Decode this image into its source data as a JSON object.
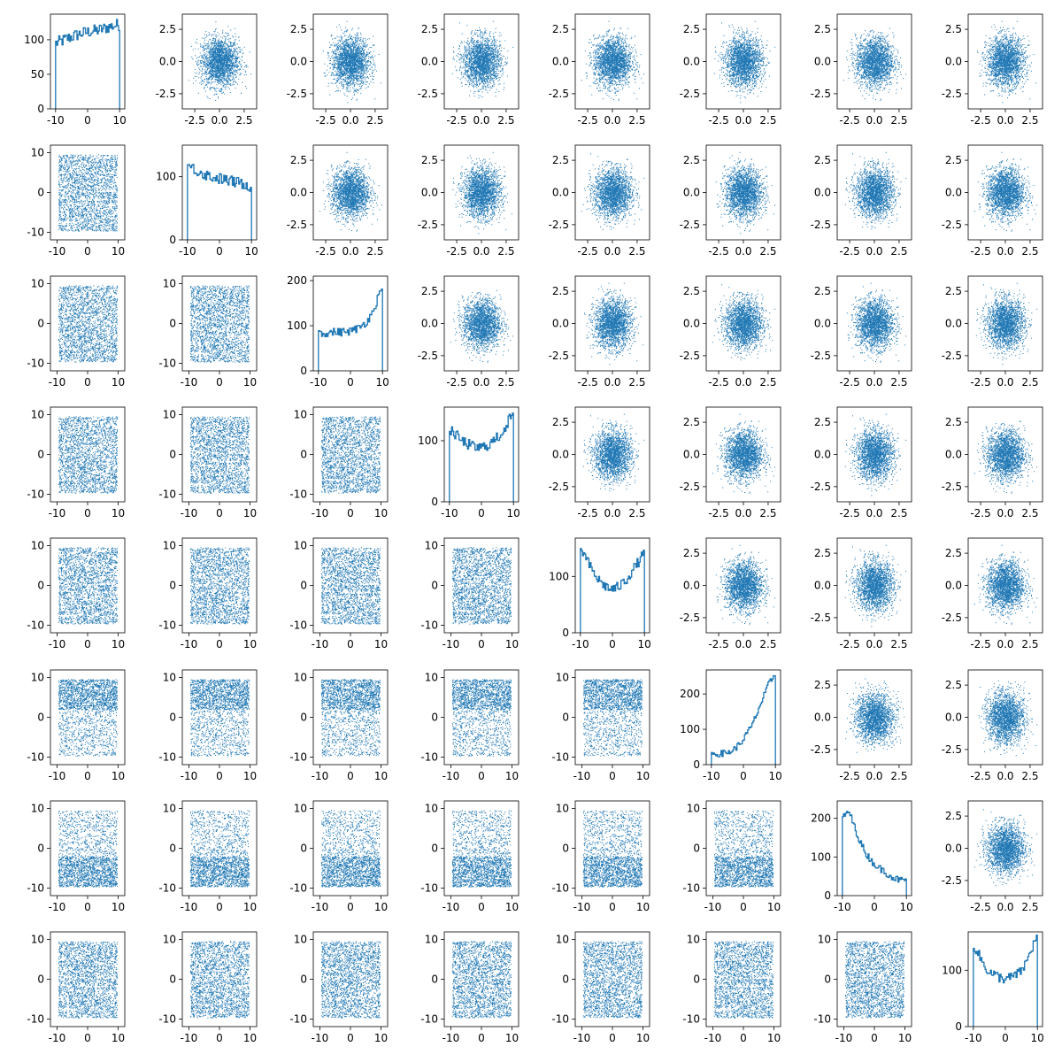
{
  "chart_data": {
    "type": "pairplot-grid",
    "layout": "8x8 corner grid: diagonal = step histograms; upper triangle = scatter of standard-normal pairs; lower triangle = scatter of uniform [-10,10] pairs",
    "colors": {
      "marks": "#1f77b4",
      "axes": "#000000",
      "background": "#ffffff"
    },
    "grid": false,
    "upper_axis": {
      "range": [
        -3.4,
        3.4
      ],
      "ticks": [
        -2.5,
        0.0,
        2.5
      ],
      "tick_labels": [
        "-2.5",
        "0.0",
        "2.5"
      ]
    },
    "lower_axis": {
      "range": [
        -11,
        11
      ],
      "ticks": [
        -10,
        0,
        10
      ],
      "tick_labels": [
        "-10",
        "0",
        "10"
      ]
    },
    "histogram_x": {
      "range": [
        -10.5,
        10.5
      ],
      "ticks": [
        -10,
        0,
        10
      ],
      "tick_labels": [
        "-10",
        "0",
        "10"
      ]
    },
    "diagonal": [
      {
        "index": 0,
        "shape": [
          95,
          98,
          102,
          105,
          108,
          110,
          112,
          113,
          115,
          118,
          120,
          122
        ],
        "y_ticks": [
          0,
          50,
          100
        ],
        "ylim": [
          0,
          137
        ]
      },
      {
        "index": 1,
        "shape": [
          118,
          112,
          108,
          104,
          100,
          98,
          96,
          94,
          92,
          90,
          88,
          85
        ],
        "y_ticks": [
          0,
          100
        ],
        "ylim": [
          0,
          150
        ]
      },
      {
        "index": 2,
        "shape": [
          85,
          84,
          85,
          86,
          86,
          87,
          90,
          95,
          105,
          120,
          150,
          190
        ],
        "y_ticks": [
          0,
          100,
          200
        ],
        "ylim": [
          0,
          210
        ]
      },
      {
        "index": 3,
        "shape": [
          118,
          110,
          100,
          95,
          90,
          88,
          90,
          95,
          102,
          112,
          128,
          145
        ],
        "y_ticks": [
          0,
          100
        ],
        "ylim": [
          0,
          155
        ]
      },
      {
        "index": 4,
        "shape": [
          150,
          130,
          110,
          95,
          85,
          78,
          78,
          85,
          95,
          110,
          125,
          140
        ],
        "y_ticks": [
          0,
          100
        ],
        "ylim": [
          0,
          168
        ]
      },
      {
        "index": 5,
        "shape": [
          30,
          30,
          32,
          35,
          45,
          60,
          85,
          110,
          150,
          190,
          230,
          255
        ],
        "y_ticks": [
          0,
          100,
          200
        ],
        "ylim": [
          0,
          268
        ]
      },
      {
        "index": 6,
        "shape": [
          200,
          220,
          180,
          140,
          110,
          90,
          75,
          65,
          55,
          45,
          40,
          40
        ],
        "y_ticks": [
          0,
          100,
          200
        ],
        "ylim": [
          0,
          245
        ]
      },
      {
        "index": 7,
        "shape": [
          145,
          125,
          105,
          95,
          90,
          85,
          85,
          90,
          95,
          110,
          135,
          160
        ],
        "y_ticks": [
          0,
          100
        ],
        "ylim": [
          0,
          168
        ]
      }
    ],
    "lower_density": [
      "uniform",
      "uniform",
      "uniform",
      "uniform",
      "uniform",
      "dense-top",
      "dense-bottom",
      "uniform"
    ]
  }
}
